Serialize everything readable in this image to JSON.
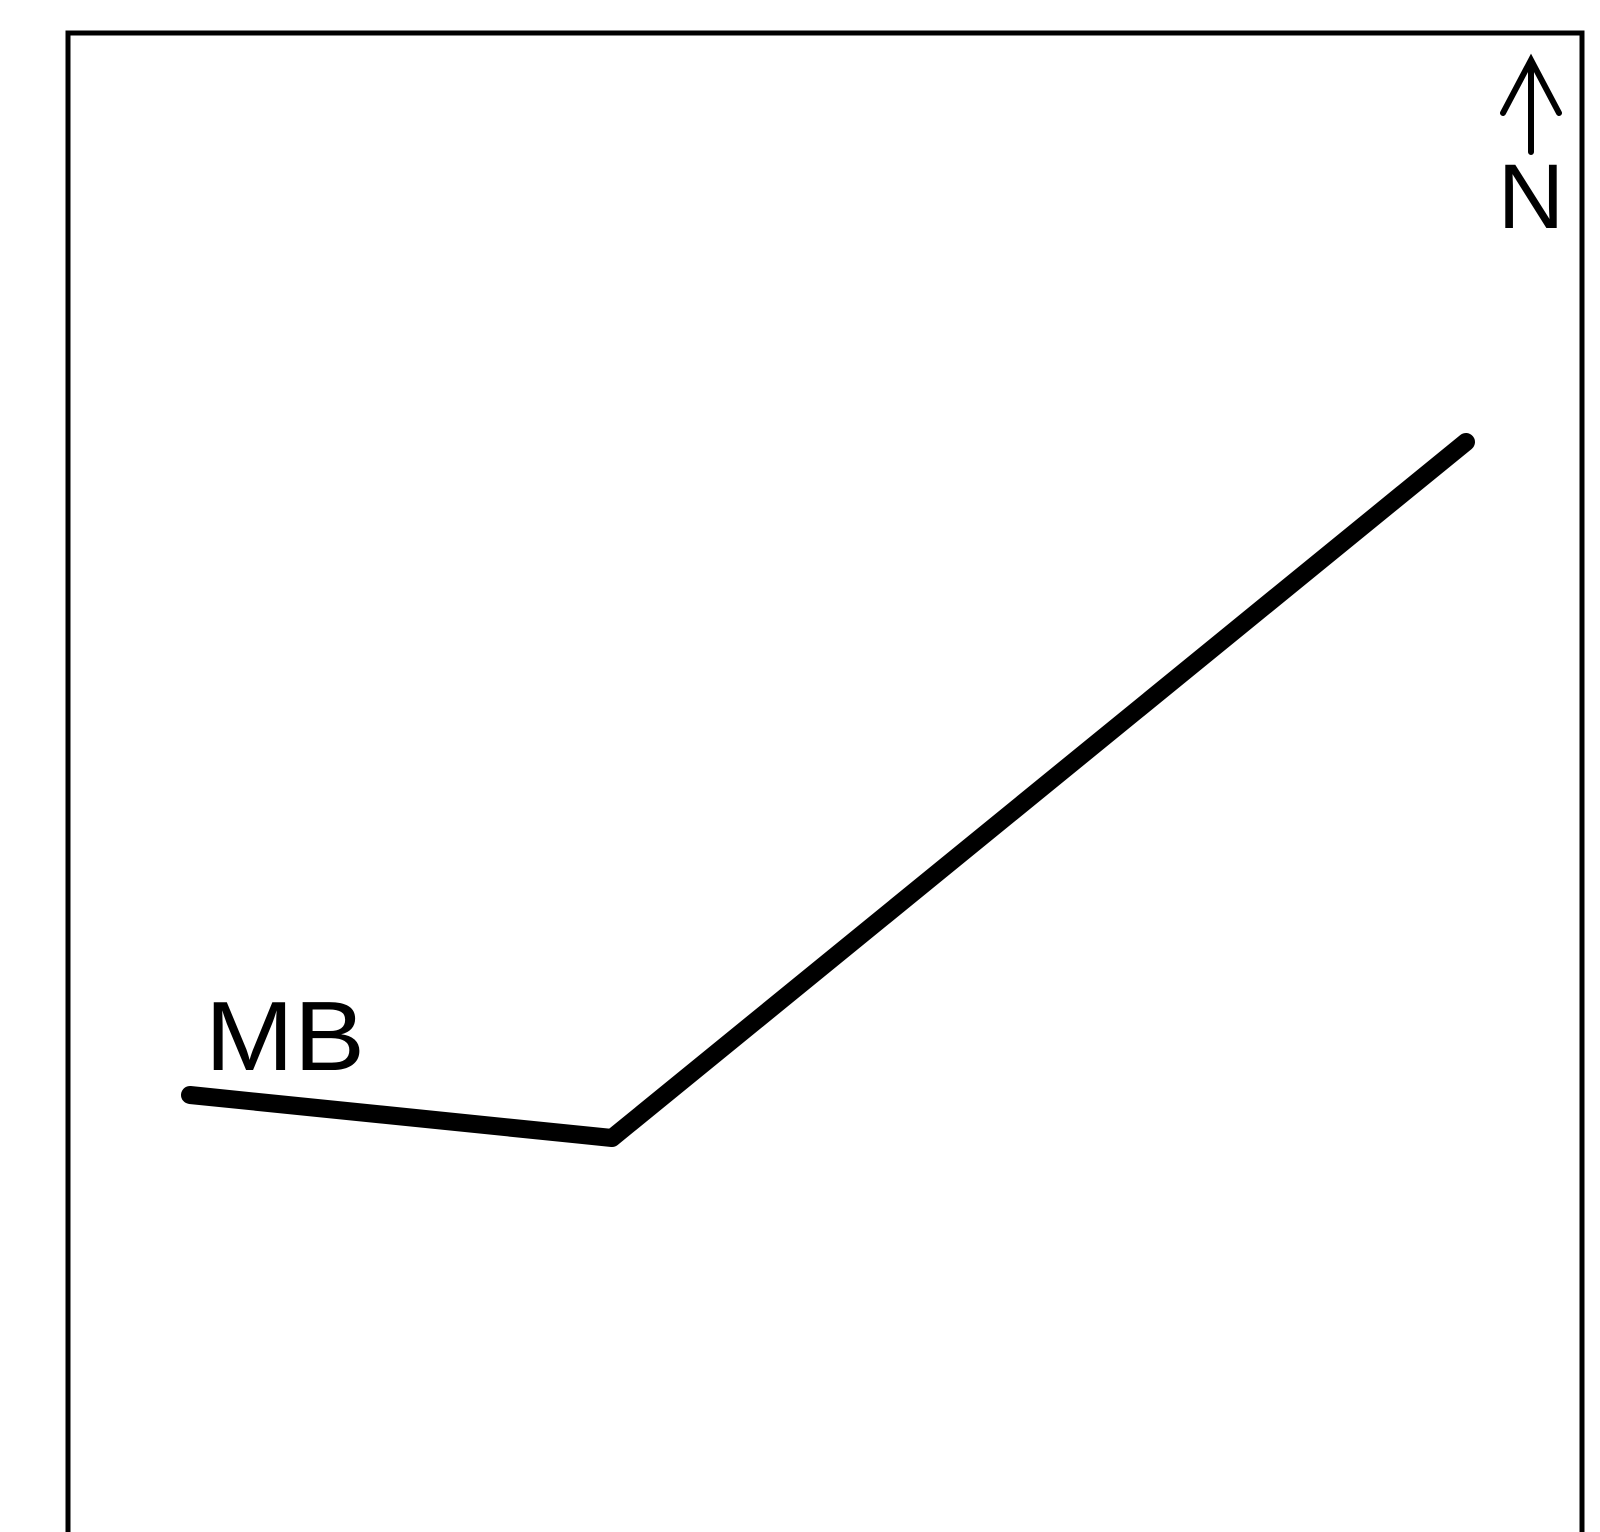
{
  "map": {
    "north_label": "N",
    "line_label": "MB",
    "colors": {
      "line": "#000000",
      "frame": "#000000",
      "background": "#ffffff"
    },
    "icons": {
      "north_arrow": "north-arrow-icon"
    }
  }
}
